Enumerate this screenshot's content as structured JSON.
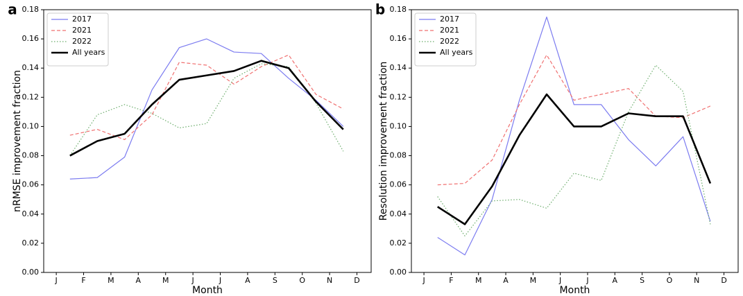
{
  "chart_data": [
    {
      "type": "line",
      "panel_label": "a",
      "x_label": "Month",
      "y_label": "nRMSE improvement fraction",
      "x": [
        0.5,
        1.5,
        2.5,
        3.5,
        4.5,
        5.5,
        6.5,
        7.5,
        8.5,
        9.5,
        10.5
      ],
      "xlim": [
        -0.46,
        11.52
      ],
      "xticks": [
        {
          "value": 0,
          "label": "J"
        },
        {
          "value": 1,
          "label": "F"
        },
        {
          "value": 2,
          "label": "M"
        },
        {
          "value": 3,
          "label": "A"
        },
        {
          "value": 4,
          "label": "M"
        },
        {
          "value": 5,
          "label": "J"
        },
        {
          "value": 6,
          "label": "J"
        },
        {
          "value": 7,
          "label": "A"
        },
        {
          "value": 8,
          "label": "S"
        },
        {
          "value": 9,
          "label": "O"
        },
        {
          "value": 10,
          "label": "N"
        },
        {
          "value": 11,
          "label": "D"
        }
      ],
      "ylim": [
        0,
        0.18
      ],
      "yticks": [
        {
          "value": 0,
          "label": "0.00"
        },
        {
          "value": 0.02,
          "label": "0.02"
        },
        {
          "value": 0.04,
          "label": "0.04"
        },
        {
          "value": 0.06,
          "label": "0.06"
        },
        {
          "value": 0.08,
          "label": "0.08"
        },
        {
          "value": 0.1,
          "label": "0.10"
        },
        {
          "value": 0.12,
          "label": "0.12"
        },
        {
          "value": 0.14,
          "label": "0.14"
        },
        {
          "value": 0.16,
          "label": "0.16"
        },
        {
          "value": 0.18,
          "label": "0.18"
        }
      ],
      "legend": "upper left",
      "series": [
        {
          "name": "2017",
          "color": "#7b7bf0",
          "style": "solid",
          "values": [
            0.064,
            0.065,
            0.079,
            0.125,
            0.154,
            0.16,
            0.151,
            0.15,
            0.133,
            0.118,
            0.1
          ]
        },
        {
          "name": "2021",
          "color": "#f07070",
          "style": "dashed",
          "values": [
            0.094,
            0.098,
            0.091,
            0.108,
            0.144,
            0.142,
            0.129,
            0.141,
            0.149,
            0.122,
            0.112
          ]
        },
        {
          "name": "2022",
          "color": "#6aac6a",
          "style": "dotted",
          "values": [
            0.08,
            0.108,
            0.115,
            0.109,
            0.099,
            0.102,
            0.133,
            0.143,
            0.141,
            0.116,
            0.083
          ]
        },
        {
          "name": "All years",
          "color": "#000000",
          "style": "thick",
          "values": [
            0.08,
            0.09,
            0.095,
            0.115,
            0.132,
            0.135,
            0.138,
            0.145,
            0.14,
            0.117,
            0.098
          ]
        }
      ]
    },
    {
      "type": "line",
      "panel_label": "b",
      "x_label": "Month",
      "y_label": "Resolution improvement fraction",
      "x": [
        0.5,
        1.5,
        2.5,
        3.5,
        4.5,
        5.5,
        6.5,
        7.5,
        8.5,
        9.5,
        10.5
      ],
      "xlim": [
        -0.46,
        11.52
      ],
      "xticks": [
        {
          "value": 0,
          "label": "J"
        },
        {
          "value": 1,
          "label": "F"
        },
        {
          "value": 2,
          "label": "M"
        },
        {
          "value": 3,
          "label": "A"
        },
        {
          "value": 4,
          "label": "M"
        },
        {
          "value": 5,
          "label": "J"
        },
        {
          "value": 6,
          "label": "J"
        },
        {
          "value": 7,
          "label": "A"
        },
        {
          "value": 8,
          "label": "S"
        },
        {
          "value": 9,
          "label": "O"
        },
        {
          "value": 10,
          "label": "N"
        },
        {
          "value": 11,
          "label": "D"
        }
      ],
      "ylim": [
        0,
        0.18
      ],
      "yticks": [
        {
          "value": 0,
          "label": "0.00"
        },
        {
          "value": 0.02,
          "label": "0.02"
        },
        {
          "value": 0.04,
          "label": "0.04"
        },
        {
          "value": 0.06,
          "label": "0.06"
        },
        {
          "value": 0.08,
          "label": "0.08"
        },
        {
          "value": 0.1,
          "label": "0.10"
        },
        {
          "value": 0.12,
          "label": "0.12"
        },
        {
          "value": 0.14,
          "label": "0.14"
        },
        {
          "value": 0.16,
          "label": "0.16"
        },
        {
          "value": 0.18,
          "label": "0.18"
        }
      ],
      "legend": "upper left",
      "series": [
        {
          "name": "2017",
          "color": "#7b7bf0",
          "style": "solid",
          "values": [
            0.024,
            0.012,
            0.05,
            0.118,
            0.175,
            0.115,
            0.115,
            0.091,
            0.073,
            0.093,
            0.035
          ]
        },
        {
          "name": "2021",
          "color": "#f07070",
          "style": "dashed",
          "values": [
            0.06,
            0.061,
            0.077,
            0.115,
            0.149,
            0.118,
            0.122,
            0.126,
            0.107,
            0.106,
            0.114
          ]
        },
        {
          "name": "2022",
          "color": "#6aac6a",
          "style": "dotted",
          "values": [
            0.052,
            0.025,
            0.049,
            0.05,
            0.044,
            0.068,
            0.063,
            0.11,
            0.142,
            0.124,
            0.033
          ]
        },
        {
          "name": "All years",
          "color": "#000000",
          "style": "thick",
          "values": [
            0.045,
            0.033,
            0.059,
            0.094,
            0.122,
            0.1,
            0.1,
            0.109,
            0.107,
            0.107,
            0.061
          ]
        }
      ]
    }
  ]
}
